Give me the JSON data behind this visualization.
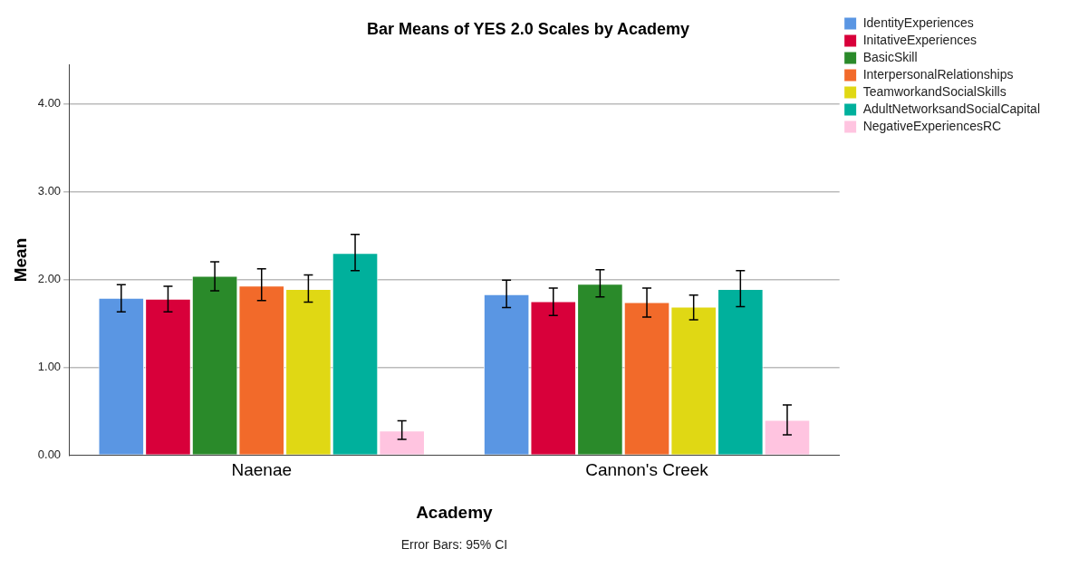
{
  "chart_data": {
    "type": "bar",
    "title": "Bar Means of YES 2.0 Scales by Academy",
    "xlabel": "Academy",
    "ylabel": "Mean",
    "categories": [
      "Naenae",
      "Cannon's Creek"
    ],
    "series": [
      {
        "name": "IdentityExperiences",
        "color": "#5a96e3",
        "values": [
          1.79,
          1.83
        ],
        "errors": [
          [
            1.63,
            1.94
          ],
          [
            1.68,
            1.99
          ]
        ]
      },
      {
        "name": "InitativeExperiences",
        "color": "#d8003a",
        "values": [
          1.78,
          1.75
        ],
        "errors": [
          [
            1.63,
            1.92
          ],
          [
            1.59,
            1.9
          ]
        ]
      },
      {
        "name": "BasicSkill",
        "color": "#2a8a2a",
        "values": [
          2.04,
          1.95
        ],
        "errors": [
          [
            1.87,
            2.2
          ],
          [
            1.8,
            2.11
          ]
        ]
      },
      {
        "name": "InterpersonalRelationships",
        "color": "#f26a2a",
        "values": [
          1.93,
          1.74
        ],
        "errors": [
          [
            1.76,
            2.12
          ],
          [
            1.57,
            1.9
          ]
        ]
      },
      {
        "name": "TeamworkandSocialSkills",
        "color": "#e0d814",
        "values": [
          1.89,
          1.69
        ],
        "errors": [
          [
            1.74,
            2.05
          ],
          [
            1.54,
            1.82
          ]
        ]
      },
      {
        "name": "AdultNetworksandSocialCapital",
        "color": "#00b09c",
        "values": [
          2.3,
          1.89
        ],
        "errors": [
          [
            2.1,
            2.51
          ],
          [
            1.69,
            2.1
          ]
        ]
      },
      {
        "name": "NegativeExperiencesRC",
        "color": "#ffc4e0",
        "values": [
          0.28,
          0.4
        ],
        "errors": [
          [
            0.18,
            0.39
          ],
          [
            0.23,
            0.57
          ]
        ]
      }
    ],
    "ylim": [
      0,
      4.44
    ],
    "yticks": [
      {
        "value": 0,
        "label": "0.00"
      },
      {
        "value": 1,
        "label": "1.00"
      },
      {
        "value": 2,
        "label": "2.00"
      },
      {
        "value": 3,
        "label": "3.00"
      },
      {
        "value": 4,
        "label": "4.00"
      }
    ],
    "grid": "y",
    "legend": "right",
    "annotations": [
      "Error Bars: 95% CI"
    ]
  }
}
